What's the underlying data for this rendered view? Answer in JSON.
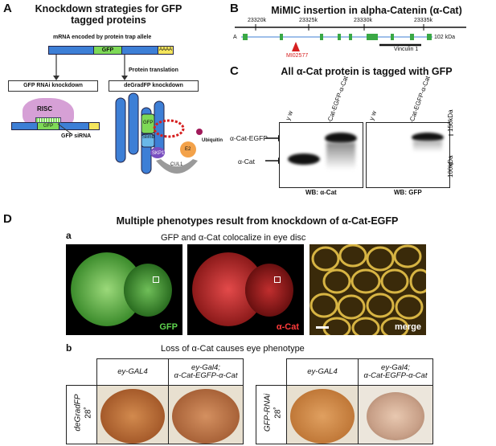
{
  "panelA": {
    "letter": "A",
    "title_line1": "Knockdown strategies for GFP",
    "title_line2": "tagged proteins",
    "mrna_label": "mRNA encoded by protein trap allele",
    "gfp": "GFP",
    "polyA": "AAAA",
    "protein_translation": "Protein translation",
    "rnai_box": "GFP RNAi knockdown",
    "degrad_box": "deGradFP knockdown",
    "risc": "RISC",
    "gfp_sirna": "GFP siRNA",
    "slimb": "Slimb",
    "skp1": "SKP1",
    "e2": "E2",
    "cul1": "CUL1",
    "ubiquitin": "Ubiquitin"
  },
  "panelB": {
    "letter": "B",
    "title": "MiMIC insertion in alpha-Catenin (α-Cat)",
    "ticks": [
      "23320k",
      "23325k",
      "23330k",
      "23335k"
    ],
    "gene_label": "A",
    "size_label": "102 kDa",
    "insertion": "MI02577",
    "domain": "Vinculin 1"
  },
  "panelC": {
    "letter": "C",
    "title": "All α-Cat protein is tagged with GFP",
    "lane1": "y w",
    "lane2": "α-Cat-EGFP-α-Cat",
    "lane3": "y w",
    "lane4": "α-Cat-EGFP-α-Cat",
    "band_upper": "α-Cat-EGFP",
    "band_lower": "α-Cat",
    "wb1": "WB: α-Cat",
    "wb2": "WB: GFP",
    "marker_high": "150kDa",
    "marker_low": "100kDa"
  },
  "panelD": {
    "letter": "D",
    "title": "Multiple phenotypes result from knockdown of α-Cat-EGFP",
    "sub_a": "a",
    "a_title": "GFP and α-Cat colocalize in eye disc",
    "img_gfp": "GFP",
    "img_acat": "α-Cat",
    "img_merge": "merge",
    "sub_b": "b",
    "b_title": "Loss of α-Cat causes eye phenotype",
    "col1": "ey-GAL4",
    "col2_line1": "ey-Gal4;",
    "col2_line2": "α-Cat-EGFP-α-Cat",
    "col3": "ey-GAL4",
    "col4_line1": "ey-Gal4;",
    "col4_line2": "α-Cat-EGFP-α-Cat",
    "row1_line1": "deGradFP",
    "row1_line2": "28˚",
    "row2_line1": "GFP-RNAi",
    "row2_line2": "28˚"
  }
}
